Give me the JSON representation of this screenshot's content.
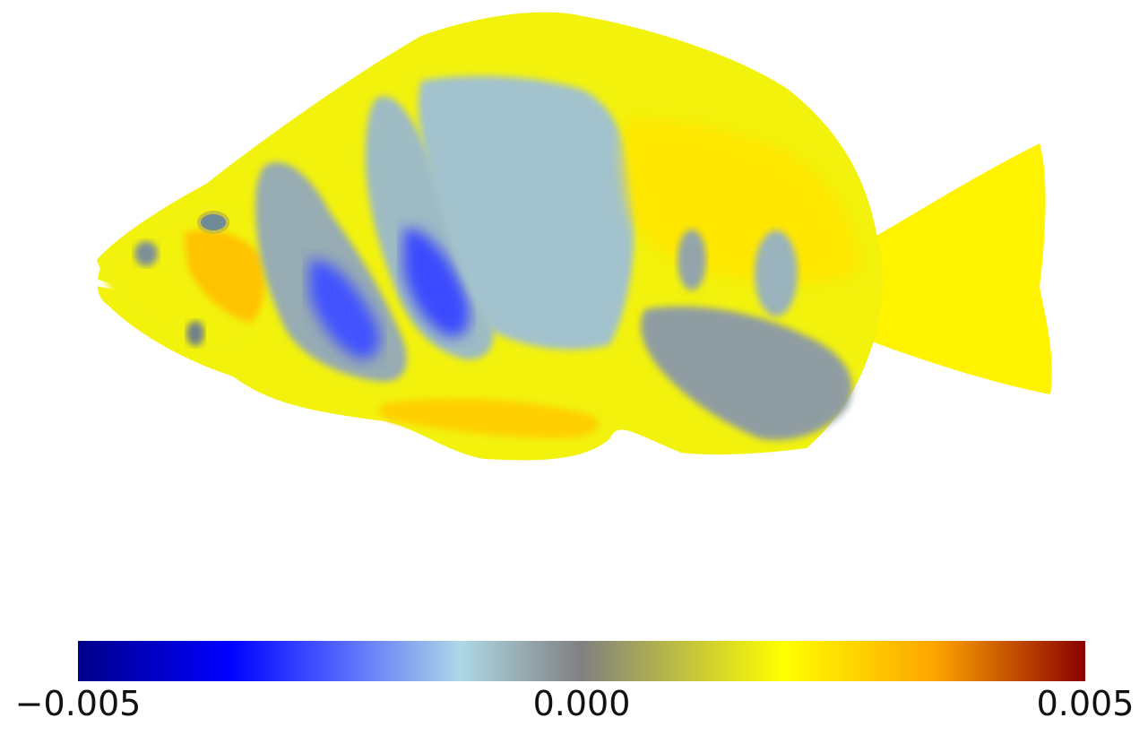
{
  "chart_data": {
    "type": "heatmap",
    "colorbar": {
      "min": -0.005,
      "max": 0.005,
      "orientation": "horizontal",
      "placement": "bottom",
      "ticks": [
        -0.005,
        0.0,
        0.005
      ],
      "tick_labels": [
        "−0.005",
        "0.000",
        "0.005"
      ],
      "colormap_stops": [
        {
          "value": -0.005,
          "color": "#00008b"
        },
        {
          "value": -0.0035,
          "color": "#0000ff"
        },
        {
          "value": -0.0025,
          "color": "#4a5cff"
        },
        {
          "value": -0.0012,
          "color": "#add8e6"
        },
        {
          "value": 0.0,
          "color": "#808080"
        },
        {
          "value": 0.002,
          "color": "#ffff00"
        },
        {
          "value": 0.0035,
          "color": "#ffa500"
        },
        {
          "value": 0.005,
          "color": "#8b0000"
        }
      ]
    },
    "regions": [
      {
        "name": "body-base",
        "value": 0.0018
      },
      {
        "name": "head",
        "value": 0.0018
      },
      {
        "name": "cheek",
        "value": 0.003
      },
      {
        "name": "gill-band",
        "value": -0.0006
      },
      {
        "name": "gill-band-core",
        "value": -0.0026
      },
      {
        "name": "second-band",
        "value": -0.0008
      },
      {
        "name": "second-band-core",
        "value": -0.0027
      },
      {
        "name": "mid-body-patch",
        "value": -0.0009
      },
      {
        "name": "rear-body",
        "value": 0.0024
      },
      {
        "name": "lower-rear-patch",
        "value": -0.0004
      },
      {
        "name": "rear-spot-1",
        "value": -0.0005
      },
      {
        "name": "rear-spot-2",
        "value": -0.0007
      },
      {
        "name": "tail-fin",
        "value": 0.0022
      },
      {
        "name": "belly-stripe",
        "value": 0.0028
      }
    ]
  }
}
